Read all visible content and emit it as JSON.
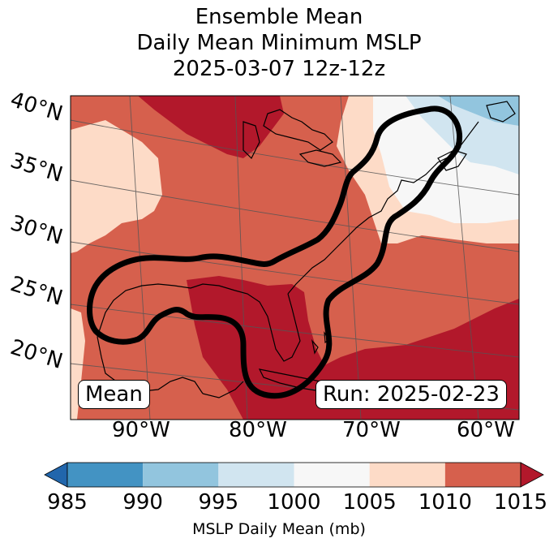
{
  "title": {
    "line1": "Ensemble Mean",
    "line2": "Daily Mean Minimum MSLP",
    "line3": "2025-03-07 12z-12z"
  },
  "map": {
    "lat_labels": [
      "40°N",
      "35°N",
      "30°N",
      "25°N",
      "20°N"
    ],
    "lon_labels": [
      "90°W",
      "80°W",
      "70°W",
      "60°W"
    ],
    "left_box": "Mean",
    "right_box": "Run: 2025-02-23",
    "colors": {
      "c1010_1015": "#d6604d",
      "c1015_plus": "#b2182b",
      "c1005_1010": "#fddbc7",
      "c1000_1005": "#f7f7f7",
      "c995_1000": "#d1e5f0",
      "c990_995": "#92c5de",
      "outline": "#000000",
      "coast": "#000000",
      "grid": "#555555"
    }
  },
  "colorbar": {
    "ticks": [
      "985",
      "990",
      "995",
      "1000",
      "1005",
      "1010",
      "1015"
    ],
    "label": "MSLP Daily Mean (mb)",
    "colors": [
      "#4393c3",
      "#92c5de",
      "#d1e5f0",
      "#f7f7f7",
      "#fddbc7",
      "#d6604d"
    ],
    "under_color": "#2166ac",
    "over_color": "#b2182b"
  }
}
